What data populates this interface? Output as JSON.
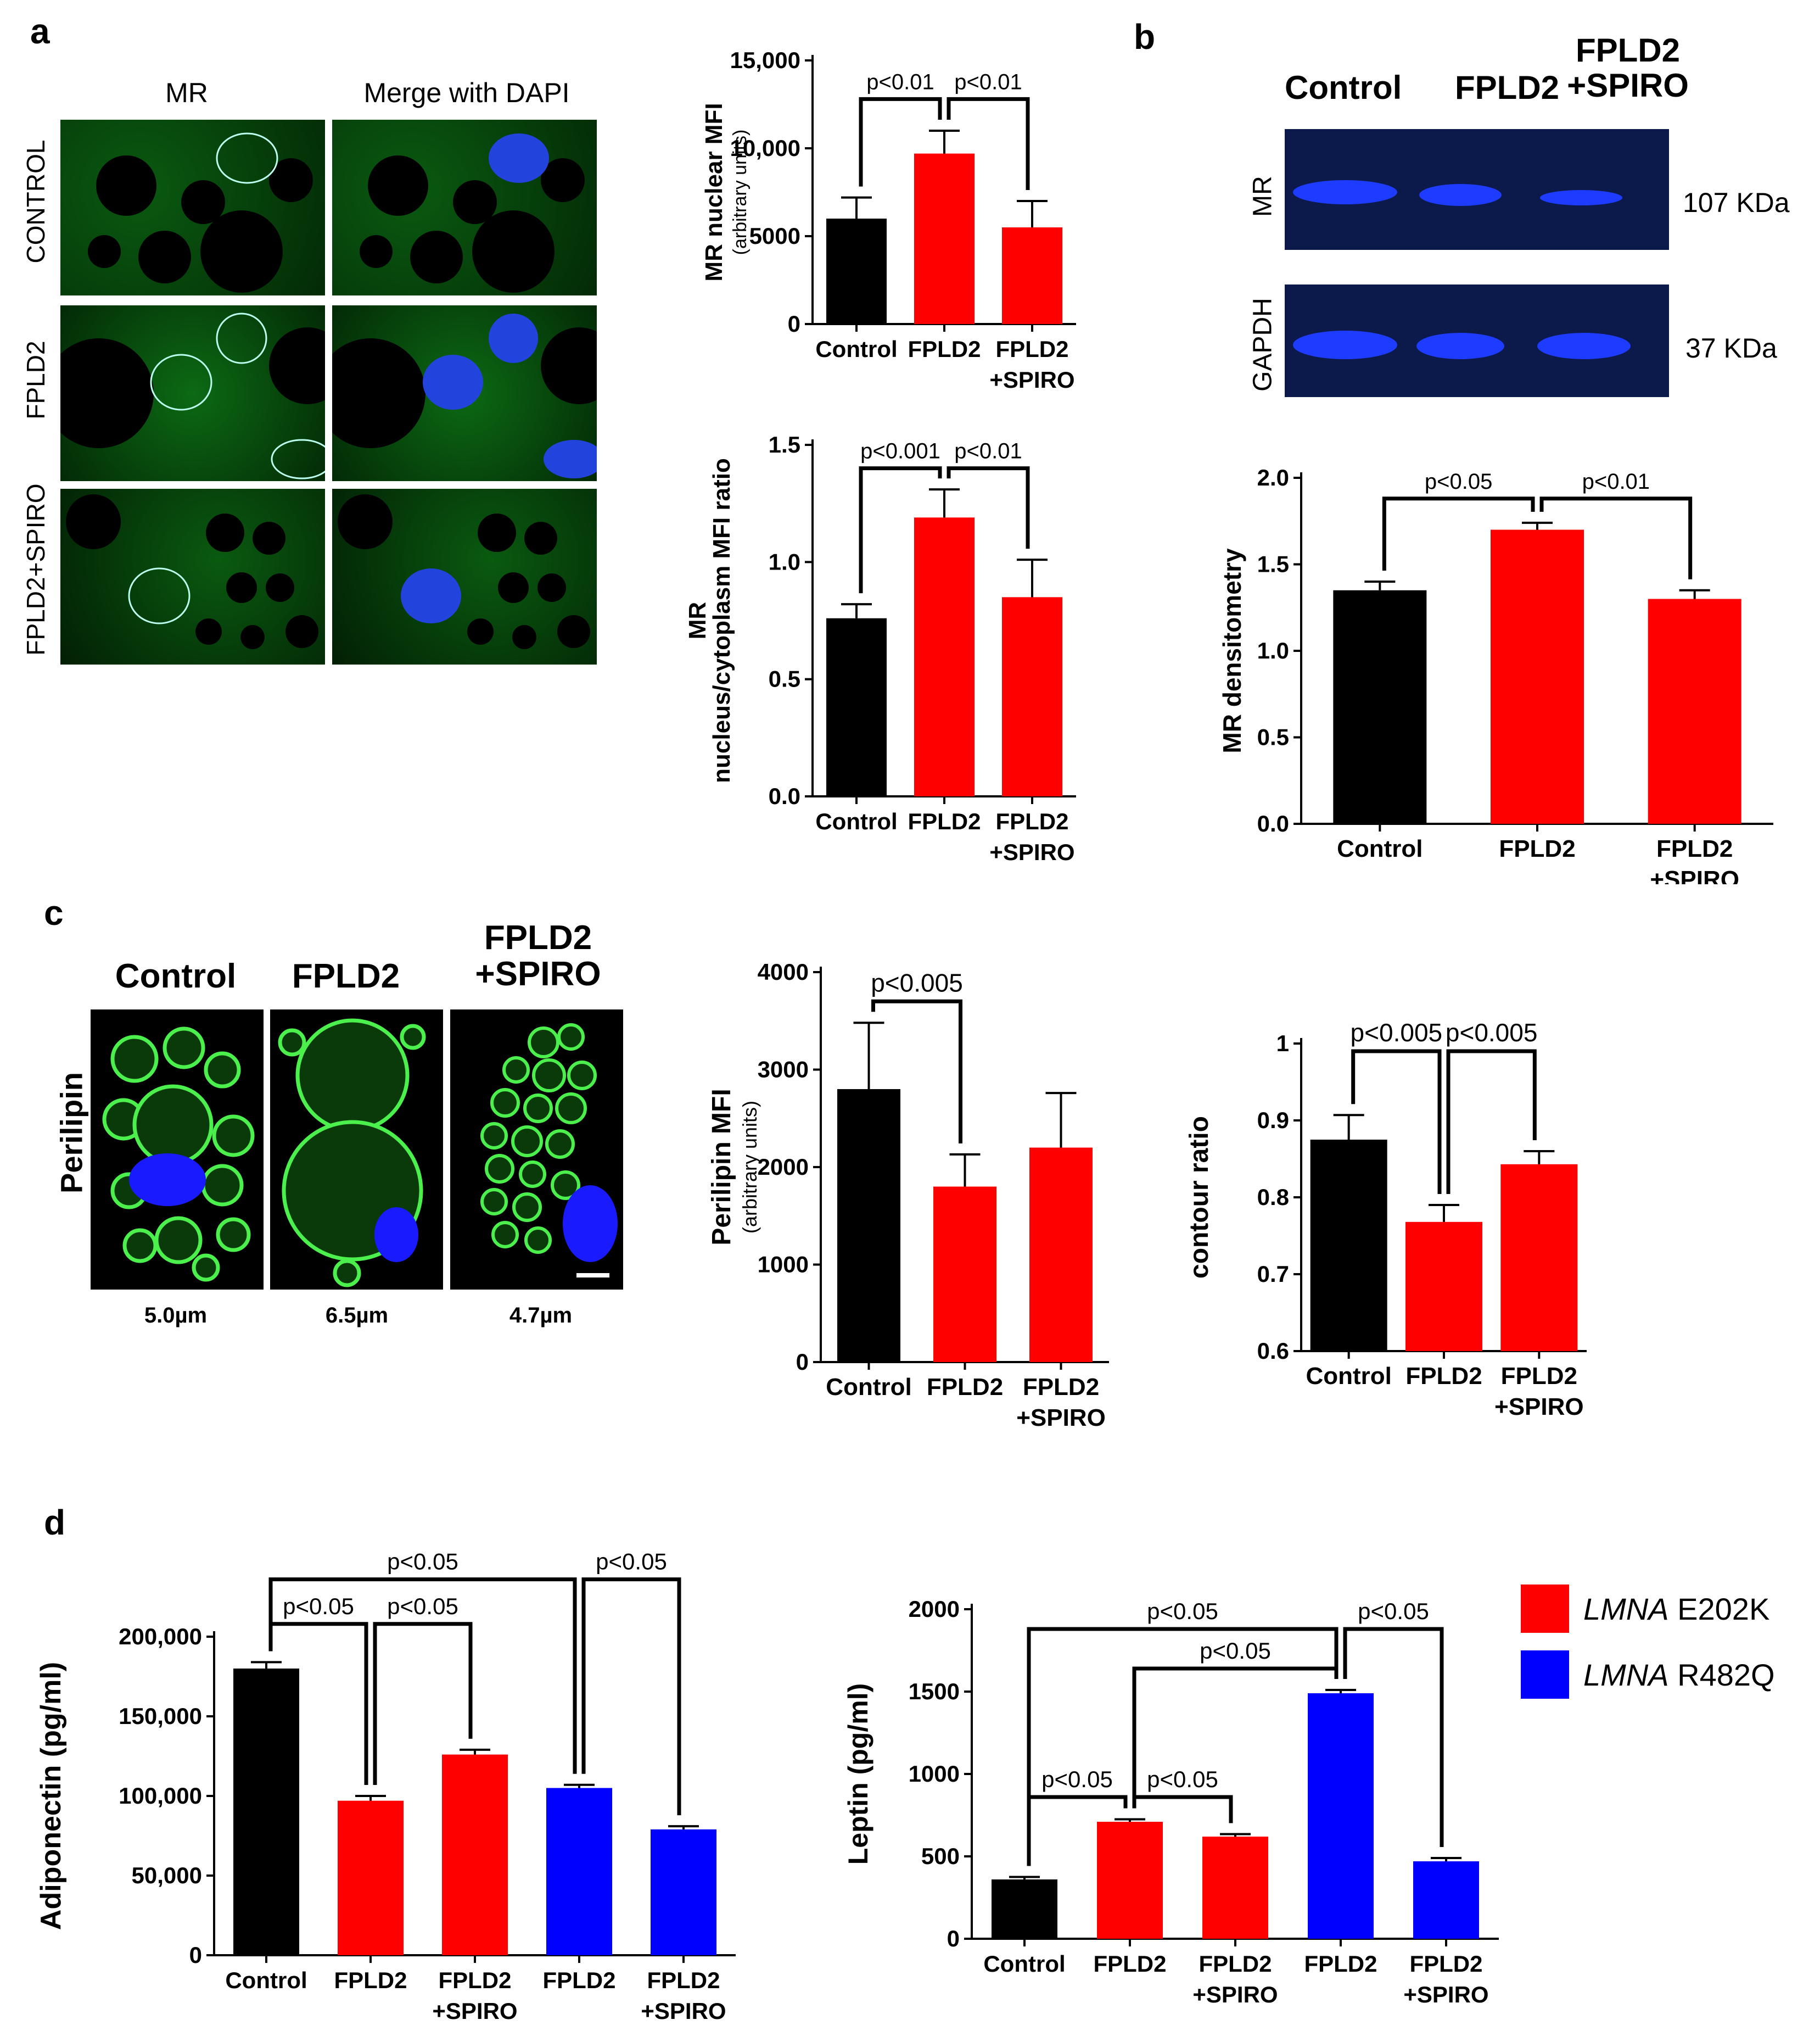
{
  "panels": {
    "a": {
      "letter": "a",
      "col_headers": [
        "MR",
        "Merge with DAPI"
      ],
      "row_labels": [
        "CONTROL",
        "FPLD2",
        "FPLD2+SPIRO"
      ]
    },
    "b": {
      "letter": "b",
      "blot_header": {
        "lane1": "Control",
        "lane2": "FPLD2",
        "lane3_line1": "FPLD2",
        "lane3_line2": "+SPIRO"
      },
      "blots": [
        {
          "label": "MR",
          "size": "107 KDa"
        },
        {
          "label": "GAPDH",
          "size": "37 KDa"
        }
      ]
    },
    "c": {
      "letter": "c",
      "col_headers": {
        "c1": "Control",
        "c2": "FPLD2",
        "c3_line1": "FPLD2",
        "c3_line2": "+SPIRO"
      },
      "row_label": "Perilipin",
      "sizes": [
        "5.0µm",
        "6.5µm",
        "4.7µm"
      ]
    },
    "d": {
      "letter": "d"
    }
  },
  "legend": [
    {
      "italic": "LMNA",
      "rest": " E202K",
      "color": "#ff0000"
    },
    {
      "italic": "LMNA",
      "rest": " R482Q",
      "color": "#0000ff"
    }
  ],
  "colors": {
    "control": "#000000",
    "fpld2": "#ff0000",
    "r482q": "#0000ff"
  },
  "chart_data": [
    {
      "id": "a-top",
      "type": "bar",
      "categories": [
        [
          "Control"
        ],
        [
          "FPLD2"
        ],
        [
          "FPLD2",
          "+SPIRO"
        ]
      ],
      "values": [
        6000,
        9700,
        5500
      ],
      "errors": [
        1200,
        1300,
        1500
      ],
      "colors": [
        "#000000",
        "#ff0000",
        "#ff0000"
      ],
      "ylabel": "MR nuclear MFI",
      "ylabel2": "(arbitrary units)",
      "ylim": [
        0,
        15000
      ],
      "yticks": [
        "0",
        "5000",
        "10,000",
        "15,000"
      ],
      "ytick_values": [
        0,
        5000,
        10000,
        15000
      ],
      "annotations": [
        {
          "from": 0,
          "to": 1,
          "level": 12800,
          "text": "p<0.01"
        },
        {
          "from": 1,
          "to": 2,
          "level": 12800,
          "text": "p<0.01"
        }
      ]
    },
    {
      "id": "a-bottom",
      "type": "bar",
      "categories": [
        [
          "Control"
        ],
        [
          "FPLD2"
        ],
        [
          "FPLD2",
          "+SPIRO"
        ]
      ],
      "values": [
        0.76,
        1.19,
        0.85
      ],
      "errors": [
        0.06,
        0.12,
        0.16
      ],
      "colors": [
        "#000000",
        "#ff0000",
        "#ff0000"
      ],
      "ylabel": "MR",
      "ylabel2": "nucleus/cytoplasm MFI ratio",
      "ylim": [
        0,
        1.5
      ],
      "yticks": [
        "0.0",
        "0.5",
        "1.0",
        "1.5"
      ],
      "ytick_values": [
        0,
        0.5,
        1.0,
        1.5
      ],
      "annotations": [
        {
          "from": 0,
          "to": 1,
          "level": 1.4,
          "text": "p<0.001"
        },
        {
          "from": 1,
          "to": 2,
          "level": 1.4,
          "text": "p<0.01"
        }
      ]
    },
    {
      "id": "b-densitometry",
      "type": "bar",
      "categories": [
        [
          "Control"
        ],
        [
          "FPLD2"
        ],
        [
          "FPLD2",
          "+SPIRO"
        ]
      ],
      "values": [
        1.35,
        1.7,
        1.3
      ],
      "errors": [
        0.05,
        0.04,
        0.05
      ],
      "colors": [
        "#000000",
        "#ff0000",
        "#ff0000"
      ],
      "ylabel": "MR densitometry",
      "ylabel2": "",
      "ylim": [
        0,
        2.0
      ],
      "yticks": [
        "0.0",
        "0.5",
        "1.0",
        "1.5",
        "2.0"
      ],
      "ytick_values": [
        0,
        0.5,
        1.0,
        1.5,
        2.0
      ],
      "annotations": [
        {
          "from": 0,
          "to": 1,
          "level": 1.88,
          "text": "p<0.05"
        },
        {
          "from": 1,
          "to": 2,
          "level": 1.88,
          "text": "p<0.01"
        }
      ]
    },
    {
      "id": "c-perilipin",
      "type": "bar",
      "categories": [
        [
          "Control"
        ],
        [
          "FPLD2"
        ],
        [
          "FPLD2",
          "+SPIRO"
        ]
      ],
      "values": [
        2800,
        1800,
        2200
      ],
      "errors": [
        680,
        330,
        560
      ],
      "colors": [
        "#000000",
        "#ff0000",
        "#ff0000"
      ],
      "ylabel": "Perilipin MFI",
      "ylabel2": "(arbitrary units)",
      "ylim": [
        0,
        4000
      ],
      "yticks": [
        "0",
        "1000",
        "2000",
        "3000",
        "4000"
      ],
      "ytick_values": [
        0,
        1000,
        2000,
        3000,
        4000
      ],
      "annotations": [
        {
          "from": 0,
          "to": 1,
          "level": 3700,
          "text": "p<0.005"
        }
      ]
    },
    {
      "id": "c-contour",
      "type": "bar",
      "categories": [
        [
          "Control"
        ],
        [
          "FPLD2"
        ],
        [
          "FPLD2",
          "+SPIRO"
        ]
      ],
      "values": [
        0.875,
        0.768,
        0.843
      ],
      "errors": [
        0.032,
        0.022,
        0.017
      ],
      "colors": [
        "#000000",
        "#ff0000",
        "#ff0000"
      ],
      "ylabel": "contour ratio",
      "ylabel2": "",
      "ylim": [
        0.6,
        1.0
      ],
      "yticks": [
        "0.6",
        "0.7",
        "0.8",
        "0.9",
        "1"
      ],
      "ytick_values": [
        0.6,
        0.7,
        0.8,
        0.9,
        1.0
      ],
      "annotations": [
        {
          "from": 0,
          "to": 1,
          "level": 0.99,
          "text": "p<0.005"
        },
        {
          "from": 1,
          "to": 2,
          "level": 0.99,
          "text": "p<0.005"
        }
      ]
    },
    {
      "id": "d-adiponectin",
      "type": "bar",
      "categories": [
        [
          "Control"
        ],
        [
          "FPLD2"
        ],
        [
          "FPLD2",
          "+SPIRO"
        ],
        [
          "FPLD2"
        ],
        [
          "FPLD2",
          "+SPIRO"
        ]
      ],
      "values": [
        180000,
        97000,
        126000,
        105000,
        79000
      ],
      "errors": [
        4000,
        3000,
        3000,
        2000,
        2000
      ],
      "colors": [
        "#000000",
        "#ff0000",
        "#ff0000",
        "#0000ff",
        "#0000ff"
      ],
      "ylabel": "Adiponectin (pg/ml)",
      "ylabel2": "",
      "ylim": [
        0,
        200000
      ],
      "yticks": [
        "0",
        "50,000",
        "100,000",
        "150,000",
        "200,000"
      ],
      "ytick_values": [
        0,
        50000,
        100000,
        150000,
        200000
      ],
      "annotations": [
        {
          "from": 0,
          "to": 3,
          "level": 236000,
          "text": "p<0.05"
        },
        {
          "from": 3,
          "to": 4,
          "level": 236000,
          "text": "p<0.05"
        },
        {
          "from": 0,
          "to": 1,
          "level": 208000,
          "text": "p<0.05"
        },
        {
          "from": 1,
          "to": 2,
          "level": 208000,
          "text": "p<0.05"
        }
      ]
    },
    {
      "id": "d-leptin",
      "type": "bar",
      "categories": [
        [
          "Control"
        ],
        [
          "FPLD2"
        ],
        [
          "FPLD2",
          "+SPIRO"
        ],
        [
          "FPLD2"
        ],
        [
          "FPLD2",
          "+SPIRO"
        ]
      ],
      "values": [
        360,
        710,
        620,
        1490,
        470
      ],
      "errors": [
        15,
        15,
        15,
        20,
        20
      ],
      "colors": [
        "#000000",
        "#ff0000",
        "#ff0000",
        "#0000ff",
        "#0000ff"
      ],
      "ylabel": "Leptin (pg/ml)",
      "ylabel2": "",
      "ylim": [
        0,
        2000
      ],
      "yticks": [
        "0",
        "500",
        "1000",
        "1500",
        "2000"
      ],
      "ytick_values": [
        0,
        500,
        1000,
        1500,
        2000
      ],
      "annotations": [
        {
          "from": 0,
          "to": 3,
          "level": 1880,
          "text": "p<0.05"
        },
        {
          "from": 3,
          "to": 4,
          "level": 1880,
          "text": "p<0.05"
        },
        {
          "from": 1,
          "to": 3,
          "level": 1640,
          "text": "p<0.05"
        },
        {
          "from": 0,
          "to": 1,
          "level": 860,
          "text": "p<0.05"
        },
        {
          "from": 1,
          "to": 2,
          "level": 860,
          "text": "p<0.05"
        }
      ]
    }
  ]
}
